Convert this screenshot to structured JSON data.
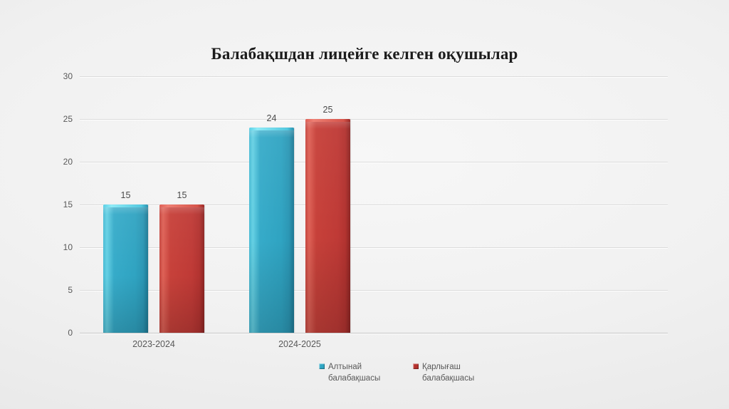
{
  "slide": {
    "title": "Балабақшдан лицейге келген оқушылар"
  },
  "chart_data": {
    "type": "bar",
    "title": "Балабақшдан лицейге келген оқушылар",
    "categories": [
      "2023-2024",
      "2024-2025"
    ],
    "series": [
      {
        "name": "Алтынай балабақшасы",
        "color": "#2FA6C4",
        "values": [
          15,
          24
        ]
      },
      {
        "name": "Қарлығаш балабақшасы",
        "color": "#BF3A36",
        "values": [
          15,
          25
        ]
      }
    ],
    "ylim": [
      0,
      30
    ],
    "yticks": [
      0,
      5,
      10,
      15,
      20,
      25,
      30
    ],
    "xlabel": "",
    "ylabel": "",
    "grid": true,
    "data_labels_shown": true,
    "legend_position": "bottom"
  },
  "colors": {
    "series_teal": "#2FA6C4",
    "series_red": "#BF3A36",
    "axis_text": "#595959",
    "title_text": "#1C1C1C",
    "gridline": "#DBDBDB",
    "background": "#F1F1F1"
  }
}
